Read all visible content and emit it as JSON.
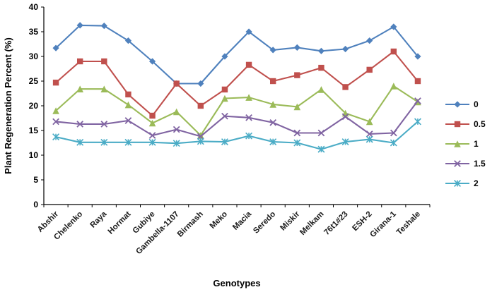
{
  "chart_data": {
    "type": "line",
    "title": "",
    "xlabel": "Genotypes",
    "ylabel": "Plant Regeneration Percent (%)",
    "ylim": [
      0,
      40
    ],
    "ytick_step": 5,
    "grid": false,
    "legend_position": "right",
    "categories": [
      "Abshir",
      "Chelenko",
      "Raya",
      "Hormat",
      "Gubiye",
      "Gambella-1107",
      "Birmash",
      "Meko",
      "Macia",
      "Seredo",
      "Miskir",
      "Melkam",
      "76t1#23",
      "ESH-2",
      "Girana-1",
      "Teshale"
    ],
    "series": [
      {
        "name": "0",
        "color": "#4F81BD",
        "marker": "diamond",
        "values": [
          31.7,
          36.3,
          36.2,
          33.2,
          29.0,
          24.5,
          24.5,
          30.0,
          35.0,
          31.3,
          31.8,
          31.1,
          31.5,
          33.2,
          36.0,
          30.0
        ]
      },
      {
        "name": "0.5",
        "color": "#C0504D",
        "marker": "square",
        "values": [
          24.7,
          29.0,
          29.0,
          22.3,
          18.0,
          24.5,
          20.0,
          23.3,
          28.3,
          25.0,
          26.2,
          27.7,
          23.8,
          27.3,
          31.0,
          25.0
        ]
      },
      {
        "name": "1",
        "color": "#9BBB59",
        "marker": "triangle",
        "values": [
          19.0,
          23.4,
          23.4,
          20.2,
          16.5,
          18.8,
          14.0,
          21.5,
          21.7,
          20.3,
          19.8,
          23.3,
          18.5,
          16.8,
          24.0,
          20.8
        ]
      },
      {
        "name": "1.5",
        "color": "#8064A2",
        "marker": "x",
        "values": [
          16.8,
          16.3,
          16.3,
          17.0,
          14.0,
          15.2,
          13.8,
          17.9,
          17.6,
          16.6,
          14.5,
          14.5,
          17.8,
          14.3,
          14.5,
          21.0
        ]
      },
      {
        "name": "2",
        "color": "#4BACC6",
        "marker": "asterisk",
        "values": [
          13.7,
          12.6,
          12.6,
          12.6,
          12.6,
          12.4,
          12.8,
          12.7,
          13.9,
          12.7,
          12.5,
          11.2,
          12.7,
          13.2,
          12.5,
          16.8
        ]
      }
    ]
  }
}
